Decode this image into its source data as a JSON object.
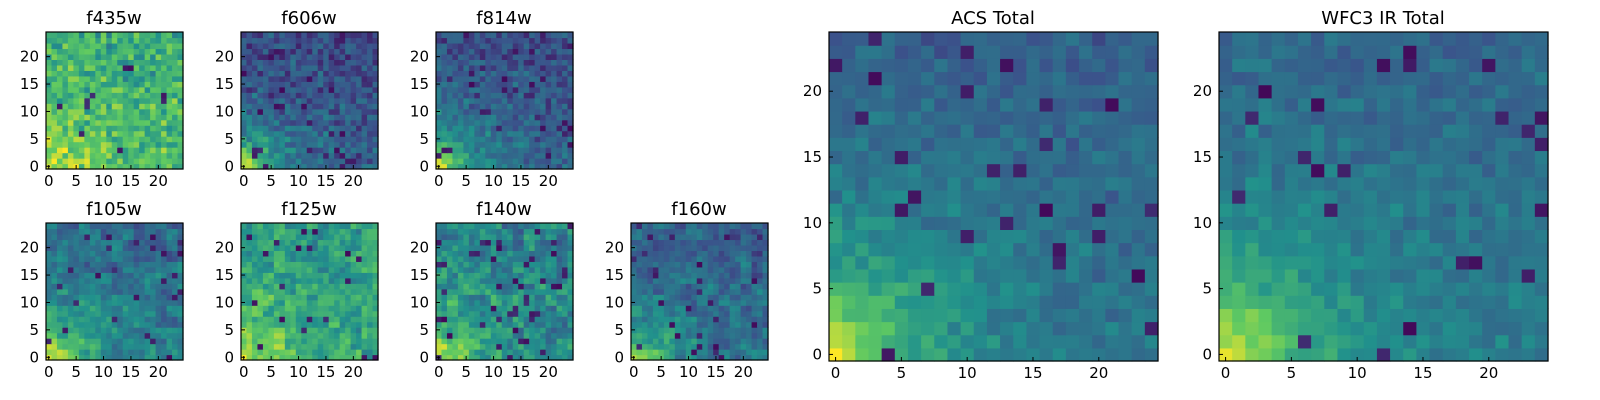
{
  "chart_data": [
    {
      "type": "heatmap",
      "title": "f435w",
      "n": 25,
      "xticks": [
        0,
        5,
        10,
        15,
        20
      ],
      "yticks": [
        0,
        5,
        10,
        15,
        20
      ],
      "seed": 11,
      "base": 0.68,
      "corner": 0.28,
      "cornerScale": 7,
      "noise": 0.22,
      "dark": 0.02,
      "block": 1
    },
    {
      "type": "heatmap",
      "title": "f606w",
      "n": 25,
      "xticks": [
        0,
        5,
        10,
        15,
        20
      ],
      "yticks": [
        0,
        5,
        10,
        15,
        20
      ],
      "seed": 23,
      "base": 0.3,
      "corner": 0.7,
      "cornerScale": 5,
      "noise": 0.16,
      "dark": 0.05,
      "block": 1
    },
    {
      "type": "heatmap",
      "title": "f814w",
      "n": 25,
      "xticks": [
        0,
        5,
        10,
        15,
        20
      ],
      "yticks": [
        0,
        5,
        10,
        15,
        20
      ],
      "seed": 37,
      "base": 0.32,
      "corner": 0.68,
      "cornerScale": 5,
      "noise": 0.16,
      "dark": 0.06,
      "block": 1
    },
    {
      "type": "heatmap",
      "title": "f105w",
      "n": 25,
      "xticks": [
        0,
        5,
        10,
        15,
        20
      ],
      "yticks": [
        0,
        5,
        10,
        15,
        20
      ],
      "seed": 41,
      "base": 0.42,
      "corner": 0.55,
      "cornerScale": 6,
      "noise": 0.16,
      "dark": 0.05,
      "block": 2
    },
    {
      "type": "heatmap",
      "title": "f125w",
      "n": 25,
      "xticks": [
        0,
        5,
        10,
        15,
        20
      ],
      "yticks": [
        0,
        5,
        10,
        15,
        20
      ],
      "seed": 53,
      "base": 0.6,
      "corner": 0.4,
      "cornerScale": 7,
      "noise": 0.2,
      "dark": 0.04,
      "block": 2
    },
    {
      "type": "heatmap",
      "title": "f140w",
      "n": 25,
      "xticks": [
        0,
        5,
        10,
        15,
        20
      ],
      "yticks": [
        0,
        5,
        10,
        15,
        20
      ],
      "seed": 67,
      "base": 0.5,
      "corner": 0.48,
      "cornerScale": 6,
      "noise": 0.2,
      "dark": 0.06,
      "block": 2
    },
    {
      "type": "heatmap",
      "title": "f160w",
      "n": 25,
      "xticks": [
        0,
        5,
        10,
        15,
        20
      ],
      "yticks": [
        0,
        5,
        10,
        15,
        20
      ],
      "seed": 79,
      "base": 0.38,
      "corner": 0.6,
      "cornerScale": 5,
      "noise": 0.16,
      "dark": 0.05,
      "block": 2
    },
    {
      "type": "heatmap",
      "title": "ACS Total",
      "n": 25,
      "xticks": [
        0,
        5,
        10,
        15,
        20
      ],
      "yticks": [
        0,
        5,
        10,
        15,
        20
      ],
      "seed": 97,
      "base": 0.38,
      "corner": 0.62,
      "cornerScale": 6,
      "noise": 0.1,
      "dark": 0.04,
      "block": 1
    },
    {
      "type": "heatmap",
      "title": "WFC3 IR Total",
      "n": 25,
      "xticks": [
        0,
        5,
        10,
        15,
        20
      ],
      "yticks": [
        0,
        5,
        10,
        15,
        20
      ],
      "seed": 113,
      "base": 0.4,
      "corner": 0.6,
      "cornerScale": 6,
      "noise": 0.1,
      "dark": 0.04,
      "block": 1
    }
  ],
  "colormap": [
    "#440154",
    "#3b528b",
    "#21918c",
    "#5ec962",
    "#fde725"
  ]
}
